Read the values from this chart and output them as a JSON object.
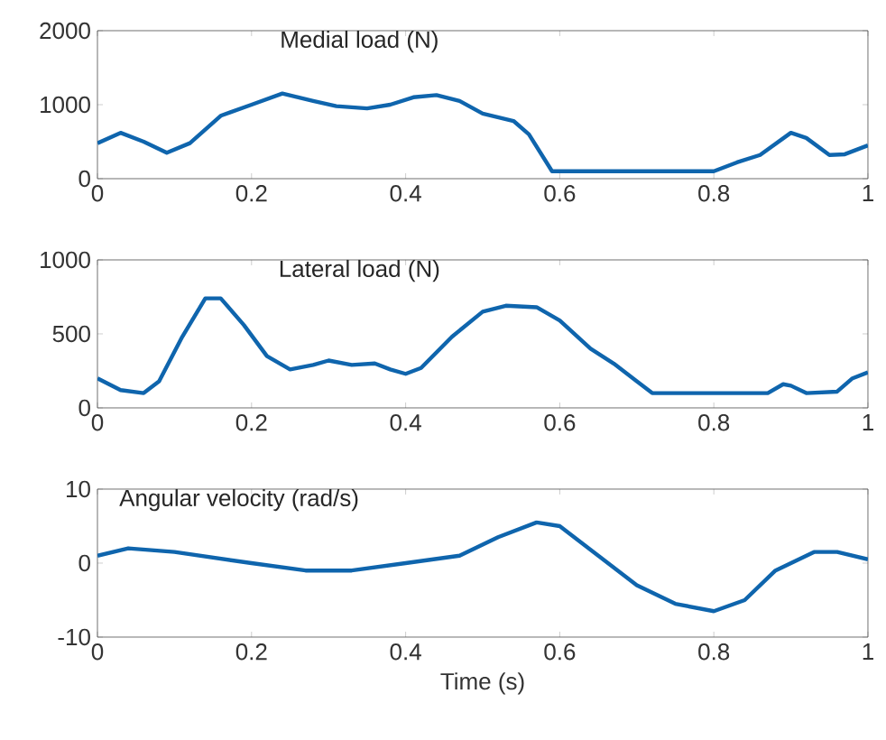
{
  "chart_data": [
    {
      "type": "line",
      "title": "Medial load (N)",
      "xlim": [
        0,
        1
      ],
      "ylim": [
        0,
        2000
      ],
      "xticks": [
        0,
        0.2,
        0.4,
        0.6,
        0.8,
        1
      ],
      "yticks": [
        0,
        1000,
        2000
      ],
      "series": [
        {
          "color": "#0f65ad",
          "x": [
            0,
            0.03,
            0.06,
            0.09,
            0.12,
            0.16,
            0.2,
            0.24,
            0.28,
            0.31,
            0.35,
            0.38,
            0.41,
            0.44,
            0.47,
            0.5,
            0.54,
            0.56,
            0.59,
            0.8,
            0.83,
            0.86,
            0.9,
            0.92,
            0.95,
            0.97,
            1.0
          ],
          "values": [
            480,
            620,
            500,
            350,
            480,
            850,
            1000,
            1150,
            1050,
            980,
            950,
            1000,
            1100,
            1130,
            1050,
            880,
            780,
            600,
            100,
            100,
            220,
            320,
            620,
            550,
            320,
            330,
            450
          ]
        }
      ]
    },
    {
      "type": "line",
      "title": "Lateral load (N)",
      "xlim": [
        0,
        1
      ],
      "ylim": [
        0,
        1000
      ],
      "xticks": [
        0,
        0.2,
        0.4,
        0.6,
        0.8,
        1
      ],
      "yticks": [
        0,
        500,
        1000
      ],
      "series": [
        {
          "color": "#0f65ad",
          "x": [
            0,
            0.03,
            0.06,
            0.08,
            0.11,
            0.14,
            0.16,
            0.19,
            0.22,
            0.25,
            0.28,
            0.3,
            0.33,
            0.36,
            0.38,
            0.4,
            0.42,
            0.46,
            0.5,
            0.53,
            0.57,
            0.6,
            0.64,
            0.67,
            0.7,
            0.72,
            0.87,
            0.89,
            0.9,
            0.92,
            0.96,
            0.98,
            1.0
          ],
          "values": [
            200,
            120,
            100,
            180,
            480,
            740,
            740,
            560,
            350,
            260,
            290,
            320,
            290,
            300,
            260,
            230,
            270,
            480,
            650,
            690,
            680,
            590,
            400,
            300,
            180,
            100,
            100,
            160,
            150,
            100,
            110,
            200,
            240
          ]
        }
      ]
    },
    {
      "type": "line",
      "title": "Angular velocity (rad/s)",
      "xlabel": "Time (s)",
      "xlim": [
        0,
        1
      ],
      "ylim": [
        -10,
        10
      ],
      "xticks": [
        0,
        0.2,
        0.4,
        0.6,
        0.8,
        1
      ],
      "yticks": [
        -10,
        0,
        10
      ],
      "series": [
        {
          "color": "#0f65ad",
          "x": [
            0,
            0.04,
            0.1,
            0.2,
            0.27,
            0.33,
            0.4,
            0.47,
            0.52,
            0.57,
            0.6,
            0.65,
            0.7,
            0.75,
            0.8,
            0.84,
            0.88,
            0.93,
            0.96,
            1.0
          ],
          "values": [
            1,
            2,
            1.5,
            0,
            -1,
            -1,
            0,
            1,
            3.5,
            5.5,
            5,
            1,
            -3,
            -5.5,
            -6.5,
            -5,
            -1,
            1.5,
            1.5,
            0.5
          ]
        }
      ]
    }
  ]
}
